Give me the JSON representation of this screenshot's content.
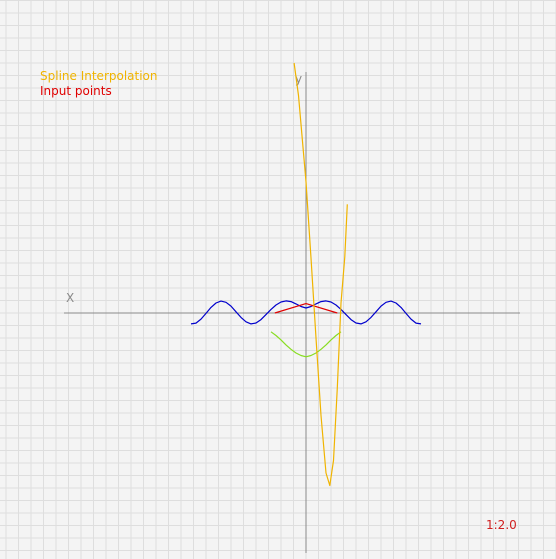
{
  "chart_data": {
    "type": "line",
    "legend": [
      {
        "label": "Spline Interpolation",
        "color": "#f0b400"
      },
      {
        "label": "Input points",
        "color": "#e00000"
      }
    ],
    "xlabel": "X",
    "ylabel": "y",
    "scale_label": "1:2.0",
    "grid": true,
    "xlim": [
      -24.2,
      18.6
    ],
    "ylim": [
      -24.1,
      18.1
    ],
    "series": [
      {
        "color": "#0000cc",
        "x": [
          -9.2,
          -8.8,
          -8.4,
          -8.0,
          -7.6,
          -7.2,
          -6.8,
          -6.4,
          -6.0,
          -5.6,
          -5.2,
          -4.8,
          -4.4,
          -4.0,
          -3.6,
          -3.2,
          -2.8,
          -2.4,
          -2.0,
          -1.6,
          -1.2,
          -0.8,
          -0.4,
          0.0,
          0.4,
          0.8,
          1.2,
          1.6,
          2.0,
          2.4,
          2.8,
          3.2,
          3.6,
          4.0,
          4.4,
          4.8,
          5.2,
          5.6,
          6.0,
          6.4,
          6.8,
          7.2,
          7.6,
          8.0,
          8.4,
          8.8,
          9.2
        ],
        "y": [
          -0.87,
          -0.81,
          -0.49,
          -0.03,
          0.45,
          0.8,
          0.95,
          0.86,
          0.55,
          0.1,
          -0.35,
          -0.7,
          -0.87,
          -0.8,
          -0.53,
          -0.13,
          0.29,
          0.64,
          0.88,
          0.97,
          0.91,
          0.73,
          0.52,
          0.4,
          0.52,
          0.73,
          0.91,
          0.97,
          0.88,
          0.64,
          0.29,
          -0.13,
          -0.53,
          -0.8,
          -0.87,
          -0.7,
          -0.35,
          0.1,
          0.55,
          0.86,
          0.95,
          0.8,
          0.45,
          -0.03,
          -0.49,
          -0.81,
          -0.87
        ]
      },
      {
        "color": "#e00000",
        "x": [
          -2.5,
          0.0,
          2.5
        ],
        "y": [
          0.0,
          0.75,
          0.0
        ]
      },
      {
        "color": "#88dd22",
        "x": [
          -2.8,
          -2.4,
          -2.0,
          -1.6,
          -1.2,
          -0.8,
          -0.4,
          0.0,
          0.4,
          0.8,
          1.2,
          1.6,
          2.0,
          2.4,
          2.8
        ],
        "y": [
          -1.5,
          -1.8,
          -2.15,
          -2.55,
          -2.9,
          -3.2,
          -3.4,
          -3.5,
          -3.4,
          -3.2,
          -2.9,
          -2.55,
          -2.15,
          -1.8,
          -1.5
        ]
      },
      {
        "color": "#f0b400",
        "x": [
          -0.95,
          -0.6,
          -0.2,
          0.0,
          0.4,
          0.8,
          1.2,
          1.6,
          1.9,
          2.2,
          2.5,
          2.8,
          3.1,
          3.2,
          3.3
        ],
        "y": [
          20.0,
          17.4,
          12.8,
          10.5,
          4.4,
          -2.0,
          -8.2,
          -12.8,
          -13.8,
          -11.8,
          -6.0,
          0.8,
          4.5,
          6.5,
          8.7
        ]
      }
    ]
  }
}
